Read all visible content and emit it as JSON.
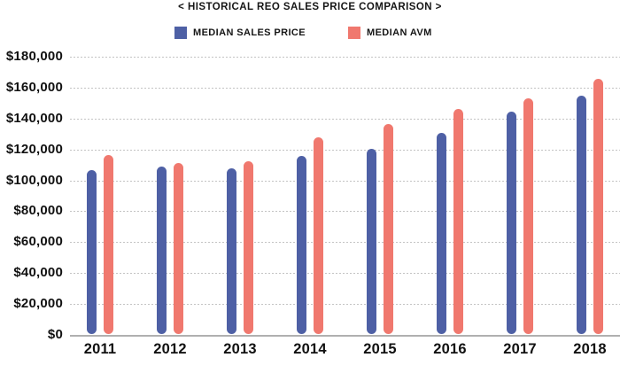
{
  "title": "< HISTORICAL REO SALES PRICE COMPARISON >",
  "legend": [
    {
      "label": "MEDIAN SALES PRICE",
      "color": "#4E60A5"
    },
    {
      "label": "MEDIAN AVM",
      "color": "#F0786E"
    }
  ],
  "chart_data": {
    "type": "bar",
    "title": "< HISTORICAL REO SALES PRICE COMPARISON >",
    "categories": [
      "2011",
      "2012",
      "2013",
      "2014",
      "2015",
      "2016",
      "2017",
      "2018"
    ],
    "series": [
      {
        "name": "MEDIAN SALES PRICE",
        "color": "#4E60A5",
        "values": [
          106000,
          108500,
          107500,
          115000,
          120000,
          130000,
          144000,
          154000
        ]
      },
      {
        "name": "MEDIAN AVM",
        "color": "#F0786E",
        "values": [
          116000,
          110500,
          112000,
          127500,
          136000,
          145500,
          152500,
          165000
        ]
      }
    ],
    "xlabel": "",
    "ylabel": "",
    "ylim": [
      0,
      180000
    ],
    "ytick_step": 20000,
    "y_tick_labels": [
      "$0",
      "$20,000",
      "$40,000",
      "$60,000",
      "$80,000",
      "$100,000",
      "$120,000",
      "$140,000",
      "$160,000",
      "$180,000"
    ],
    "grid": "horizontal-dotted",
    "legend_position": "top-center"
  },
  "colors": {
    "background": "#ffffff",
    "gridline": "#c3c3c3",
    "axis_line": "#b0b0b0",
    "text": "#141414"
  }
}
